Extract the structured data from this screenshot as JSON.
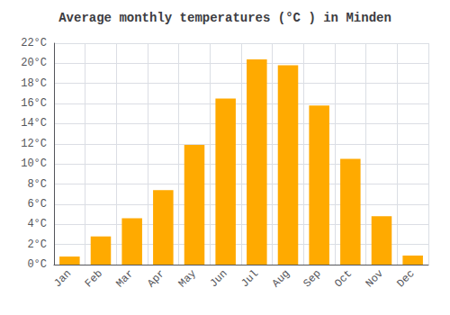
{
  "chart_data": {
    "type": "bar",
    "title": "Average monthly temperatures (°C ) in Minden",
    "categories": [
      "Jan",
      "Feb",
      "Mar",
      "Apr",
      "May",
      "Jun",
      "Jul",
      "Aug",
      "Sep",
      "Oct",
      "Nov",
      "Dec"
    ],
    "values": [
      0.8,
      2.8,
      4.6,
      7.4,
      11.9,
      16.5,
      20.4,
      19.8,
      15.8,
      10.5,
      4.8,
      0.9
    ],
    "color": "#FFAA00",
    "ylim": [
      0,
      22
    ],
    "yticks": [
      {
        "value": 0,
        "label": "0°C"
      },
      {
        "value": 2,
        "label": "2°C"
      },
      {
        "value": 4,
        "label": "4°C"
      },
      {
        "value": 6,
        "label": "6°C"
      },
      {
        "value": 8,
        "label": "8°C"
      },
      {
        "value": 10,
        "label": "10°C"
      },
      {
        "value": 12,
        "label": "12°C"
      },
      {
        "value": 14,
        "label": "14°C"
      },
      {
        "value": 16,
        "label": "16°C"
      },
      {
        "value": 18,
        "label": "18°C"
      },
      {
        "value": 20,
        "label": "20°C"
      },
      {
        "value": 22,
        "label": "22°C"
      }
    ],
    "grid": true
  }
}
